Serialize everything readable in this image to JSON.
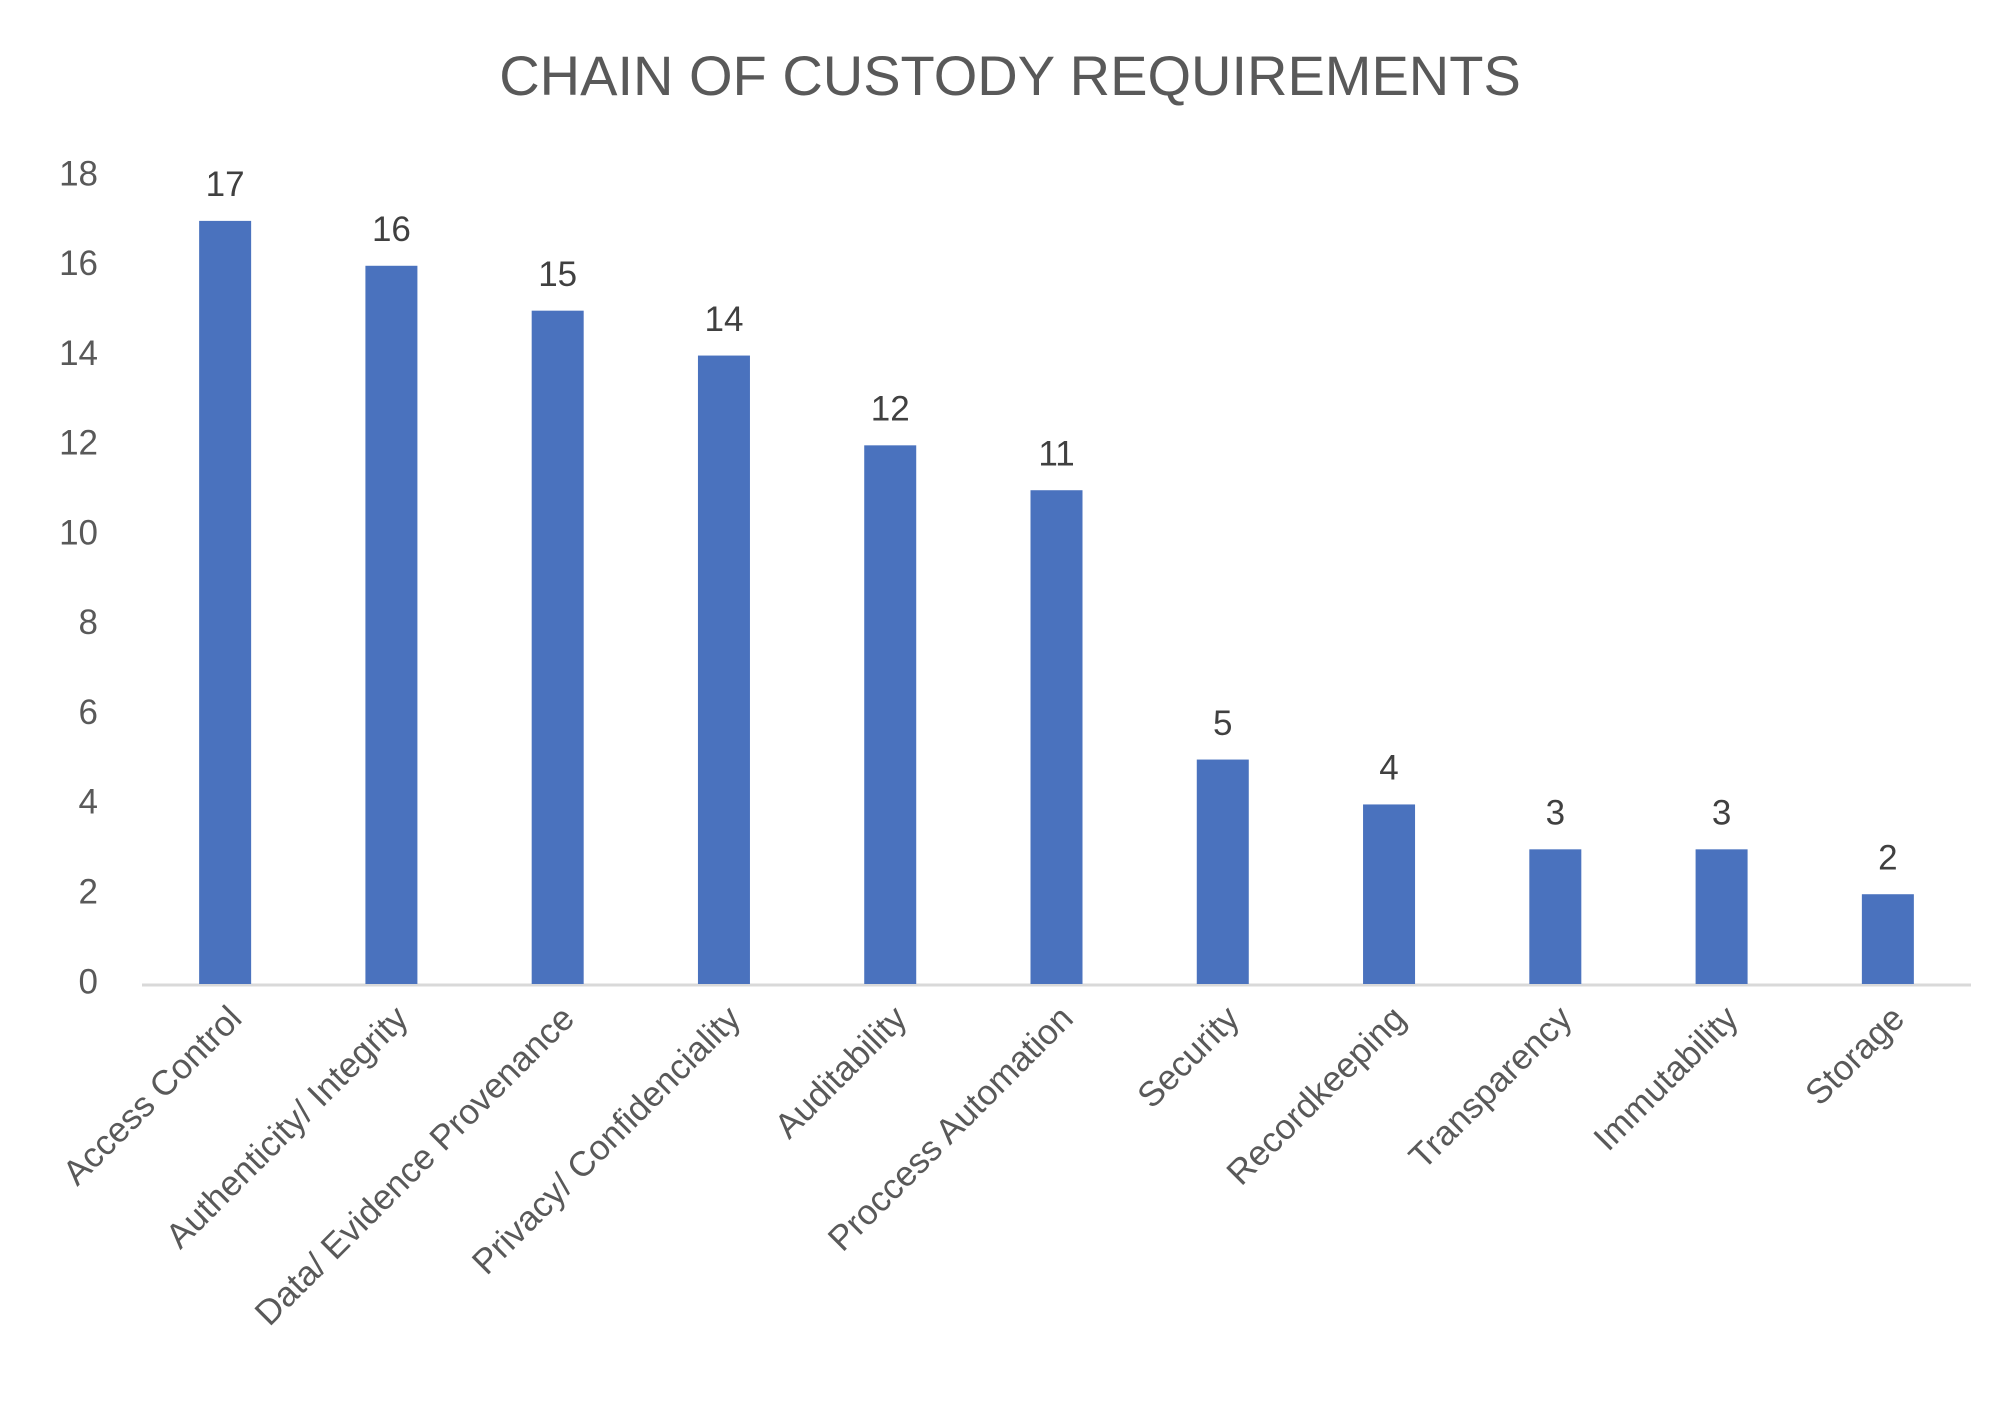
{
  "chart_data": {
    "type": "bar",
    "title": "CHAIN OF CUSTODY REQUIREMENTS",
    "categories": [
      "Access Control",
      "Authenticity/ Integrity",
      "Data/ Evidence Provenance",
      "Privacy/ Confidenciality",
      "Auditability",
      "Proccess Automation",
      "Security",
      "Recordkeeping",
      "Transparency",
      "Immutability",
      "Storage"
    ],
    "values": [
      17,
      16,
      15,
      14,
      12,
      11,
      5,
      4,
      3,
      3,
      2
    ],
    "color": "#4a72be",
    "ylim": [
      0,
      18
    ],
    "yticks": [
      0,
      2,
      4,
      6,
      8,
      10,
      12,
      14,
      16,
      18
    ],
    "grid": false
  }
}
